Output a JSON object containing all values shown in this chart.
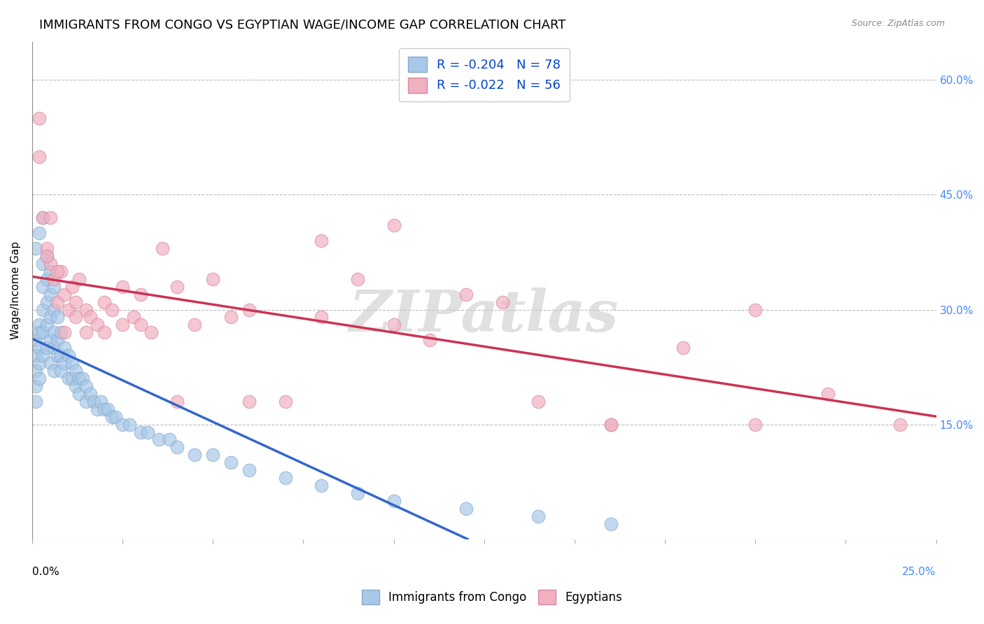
{
  "title": "IMMIGRANTS FROM CONGO VS EGYPTIAN WAGE/INCOME GAP CORRELATION CHART",
  "source": "Source: ZipAtlas.com",
  "ylabel": "Wage/Income Gap",
  "ytick_labels": [
    "60.0%",
    "45.0%",
    "30.0%",
    "15.0%"
  ],
  "ytick_values": [
    0.6,
    0.45,
    0.3,
    0.15
  ],
  "xlim": [
    0.0,
    0.25
  ],
  "ylim": [
    0.0,
    0.65
  ],
  "watermark": "ZIPatlas",
  "background_color": "#ffffff",
  "grid_color": "#bbbbbb",
  "title_fontsize": 13,
  "axis_label_fontsize": 11,
  "tick_fontsize": 11,
  "series_congo": {
    "color": "#a8c8e8",
    "edge_color": "#88aacc",
    "line_color": "#3366cc",
    "x": [
      0.001,
      0.001,
      0.001,
      0.001,
      0.001,
      0.002,
      0.002,
      0.002,
      0.002,
      0.002,
      0.003,
      0.003,
      0.003,
      0.003,
      0.003,
      0.004,
      0.004,
      0.004,
      0.004,
      0.005,
      0.005,
      0.005,
      0.005,
      0.006,
      0.006,
      0.006,
      0.006,
      0.007,
      0.007,
      0.007,
      0.008,
      0.008,
      0.008,
      0.009,
      0.009,
      0.01,
      0.01,
      0.011,
      0.011,
      0.012,
      0.012,
      0.013,
      0.013,
      0.014,
      0.015,
      0.015,
      0.016,
      0.017,
      0.018,
      0.019,
      0.02,
      0.021,
      0.022,
      0.023,
      0.025,
      0.027,
      0.03,
      0.032,
      0.035,
      0.038,
      0.04,
      0.045,
      0.05,
      0.055,
      0.06,
      0.07,
      0.08,
      0.09,
      0.1,
      0.12,
      0.14,
      0.16,
      0.001,
      0.002,
      0.003,
      0.004,
      0.005,
      0.006
    ],
    "y": [
      0.26,
      0.24,
      0.22,
      0.2,
      0.18,
      0.28,
      0.27,
      0.25,
      0.23,
      0.21,
      0.36,
      0.33,
      0.3,
      0.27,
      0.24,
      0.34,
      0.31,
      0.28,
      0.25,
      0.32,
      0.29,
      0.26,
      0.23,
      0.3,
      0.27,
      0.25,
      0.22,
      0.29,
      0.26,
      0.24,
      0.27,
      0.24,
      0.22,
      0.25,
      0.23,
      0.24,
      0.21,
      0.23,
      0.21,
      0.22,
      0.2,
      0.21,
      0.19,
      0.21,
      0.2,
      0.18,
      0.19,
      0.18,
      0.17,
      0.18,
      0.17,
      0.17,
      0.16,
      0.16,
      0.15,
      0.15,
      0.14,
      0.14,
      0.13,
      0.13,
      0.12,
      0.11,
      0.11,
      0.1,
      0.09,
      0.08,
      0.07,
      0.06,
      0.05,
      0.04,
      0.03,
      0.02,
      0.38,
      0.4,
      0.42,
      0.37,
      0.35,
      0.33
    ]
  },
  "series_egypt": {
    "color": "#f0b0c0",
    "edge_color": "#d888a0",
    "line_color": "#cc3355",
    "x": [
      0.002,
      0.003,
      0.004,
      0.005,
      0.006,
      0.007,
      0.008,
      0.009,
      0.01,
      0.011,
      0.012,
      0.013,
      0.015,
      0.016,
      0.018,
      0.02,
      0.022,
      0.025,
      0.028,
      0.03,
      0.033,
      0.036,
      0.04,
      0.045,
      0.05,
      0.055,
      0.06,
      0.07,
      0.08,
      0.09,
      0.1,
      0.11,
      0.12,
      0.14,
      0.16,
      0.18,
      0.2,
      0.22,
      0.24,
      0.005,
      0.007,
      0.009,
      0.012,
      0.015,
      0.02,
      0.025,
      0.03,
      0.04,
      0.06,
      0.08,
      0.1,
      0.13,
      0.16,
      0.2,
      0.002,
      0.004
    ],
    "y": [
      0.55,
      0.42,
      0.38,
      0.36,
      0.34,
      0.31,
      0.35,
      0.32,
      0.3,
      0.33,
      0.31,
      0.34,
      0.3,
      0.29,
      0.28,
      0.31,
      0.3,
      0.28,
      0.29,
      0.32,
      0.27,
      0.38,
      0.33,
      0.28,
      0.34,
      0.29,
      0.3,
      0.18,
      0.29,
      0.34,
      0.28,
      0.26,
      0.32,
      0.18,
      0.15,
      0.25,
      0.3,
      0.19,
      0.15,
      0.42,
      0.35,
      0.27,
      0.29,
      0.27,
      0.27,
      0.33,
      0.28,
      0.18,
      0.18,
      0.39,
      0.41,
      0.31,
      0.15,
      0.15,
      0.5,
      0.37
    ]
  }
}
